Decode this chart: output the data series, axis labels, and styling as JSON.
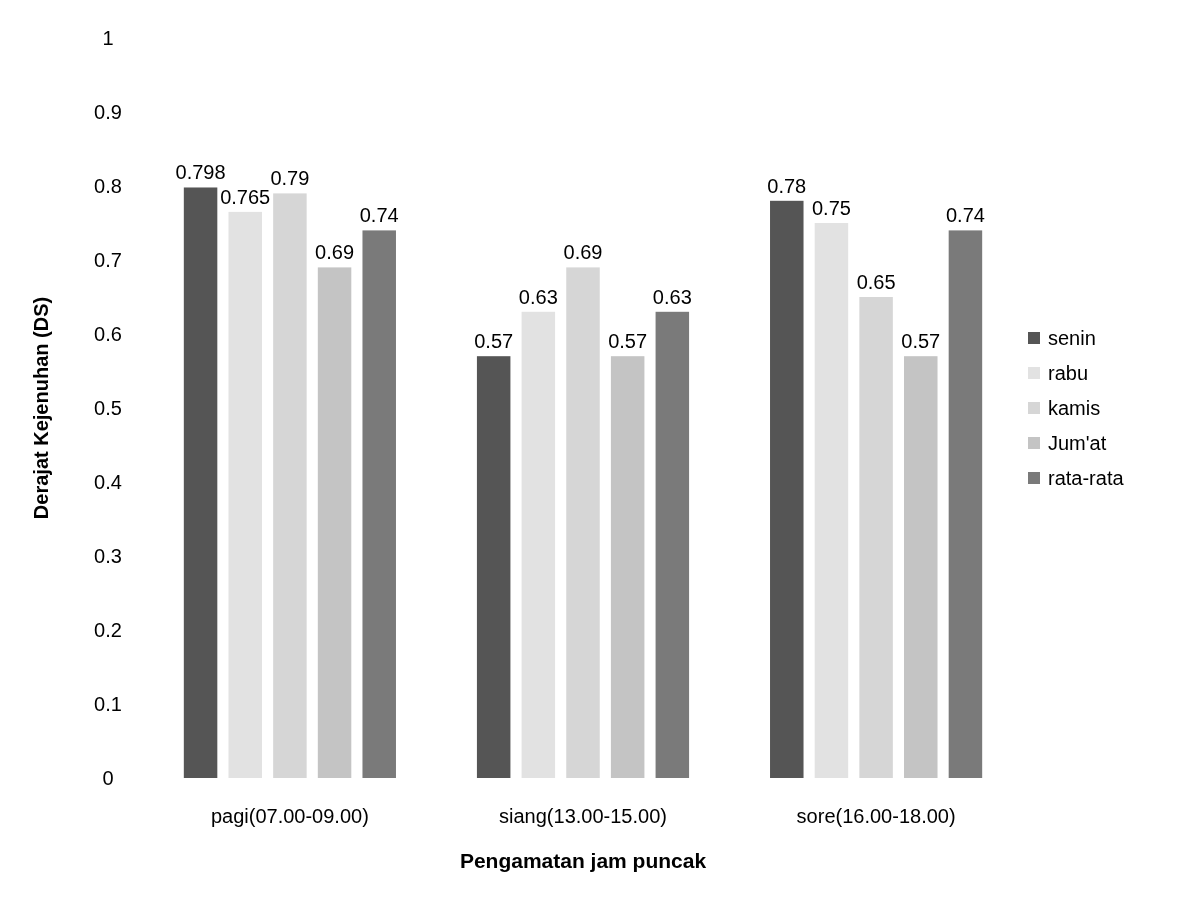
{
  "chart_data": {
    "type": "bar",
    "xlabel": "Pengamatan jam puncak",
    "ylabel": "Derajat Kejenuhan (DS)",
    "categories": [
      "pagi(07.00-09.00)",
      "siang(13.00-15.00)",
      "sore(16.00-18.00)"
    ],
    "series": [
      {
        "name": "senin",
        "color": "#555555",
        "values": [
          0.798,
          0.57,
          0.78
        ]
      },
      {
        "name": "rabu",
        "color": "#e2e2e2",
        "values": [
          0.765,
          0.63,
          0.75
        ]
      },
      {
        "name": "kamis",
        "color": "#d6d6d6",
        "values": [
          0.79,
          0.69,
          0.65
        ]
      },
      {
        "name": "Jum'at",
        "color": "#c4c4c4",
        "values": [
          0.69,
          0.57,
          0.57
        ]
      },
      {
        "name": "rata-rata",
        "color": "#7a7a7a",
        "values": [
          0.74,
          0.63,
          0.74
        ]
      }
    ],
    "ylim": [
      0,
      1
    ],
    "yticks": [
      0,
      0.1,
      0.2,
      0.3,
      0.4,
      0.5,
      0.6,
      0.7,
      0.8,
      0.9,
      1
    ],
    "data_labels": true,
    "legend": "right"
  }
}
